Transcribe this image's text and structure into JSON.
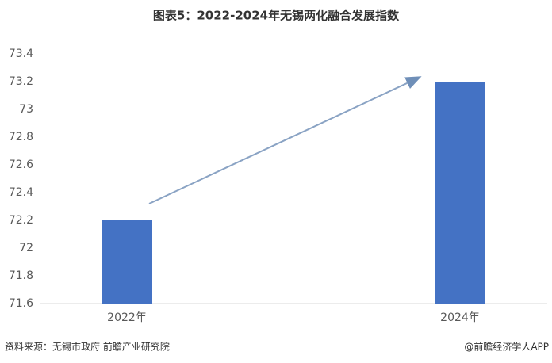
{
  "chart_data": {
    "type": "bar",
    "title": "图表5：2022-2024年无锡两化融合发展指数",
    "categories": [
      "2022年",
      "2024年"
    ],
    "values": [
      72.2,
      73.2
    ],
    "color": "#4472c4",
    "ylim": [
      71.6,
      73.4
    ],
    "yticks": [
      71.6,
      71.8,
      72,
      72.2,
      72.4,
      72.6,
      72.8,
      73,
      73.2,
      73.4
    ],
    "grid": false,
    "source": "资料来源：无锡市政府 前瞻产业研究院",
    "credit": "@前瞻经济学人APP"
  }
}
